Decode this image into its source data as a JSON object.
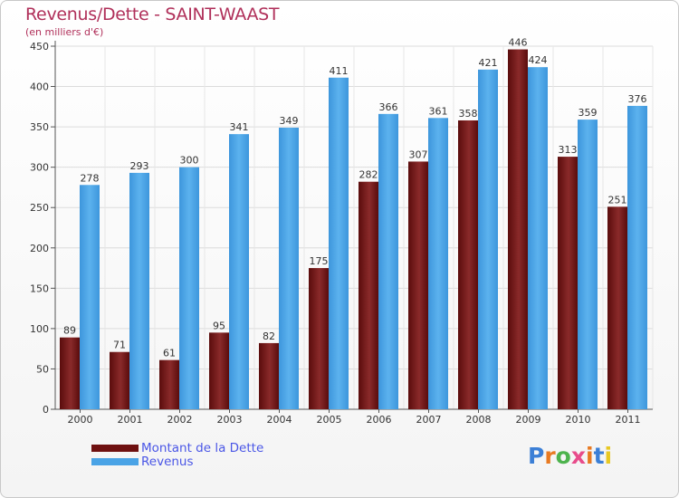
{
  "title": "Revenus/Dette - SAINT-WAAST",
  "subtitle": "(en milliers d'€)",
  "logo": {
    "text": "Proxiti",
    "letter_colors": [
      "#3b7fd6",
      "#e87a22",
      "#4db34d",
      "#e84c8b",
      "#e87a22",
      "#3b7fd6",
      "#e8c822"
    ]
  },
  "chart_data": {
    "type": "bar",
    "categories": [
      "2000",
      "2001",
      "2002",
      "2003",
      "2004",
      "2005",
      "2006",
      "2007",
      "2008",
      "2009",
      "2010",
      "2011"
    ],
    "series": [
      {
        "name": "Montant de la Dette",
        "color": "#7a1a1a",
        "values": [
          89,
          71,
          61,
          95,
          82,
          175,
          282,
          307,
          358,
          446,
          313,
          251
        ]
      },
      {
        "name": "Revenus",
        "color": "#4aa3e6",
        "values": [
          278,
          293,
          300,
          341,
          349,
          411,
          366,
          361,
          421,
          424,
          359,
          376
        ]
      }
    ],
    "ylim": [
      0,
      450
    ],
    "yticks": [
      0,
      50,
      100,
      150,
      200,
      250,
      300,
      350,
      400,
      450
    ],
    "grid": true,
    "legend_position": "bottom-left"
  }
}
